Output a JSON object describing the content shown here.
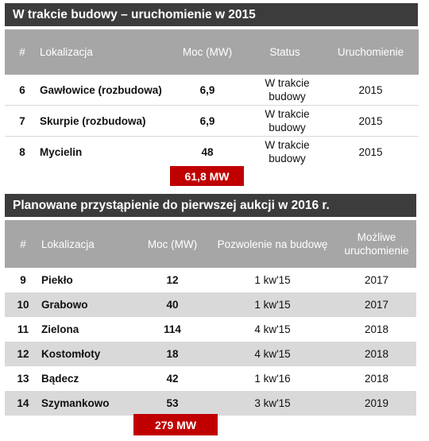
{
  "section1": {
    "title": "W trakcie budowy – uruchomienie w 2015",
    "headers": {
      "num": "#",
      "location": "Lokalizacja",
      "power": "Moc (MW)",
      "status": "Status",
      "launch": "Uruchomienie"
    },
    "rows": [
      {
        "num": "6",
        "location": "Gawłowice (rozbudowa)",
        "power": "6,9",
        "status": "W trakcie budowy",
        "launch": "2015"
      },
      {
        "num": "7",
        "location": "Skurpie (rozbudowa)",
        "power": "6,9",
        "status": "W trakcie budowy",
        "launch": "2015"
      },
      {
        "num": "8",
        "location": "Mycielin",
        "power": "48",
        "status": "W trakcie budowy",
        "launch": "2015"
      }
    ],
    "total": "61,8 MW"
  },
  "section2": {
    "title": "Planowane przystąpienie do pierwszej aukcji w 2016 r.",
    "headers": {
      "num": "#",
      "location": "Lokalizacja",
      "power": "Moc (MW)",
      "permit": "Pozwolenie na budowę",
      "launch": "Możliwe uruchomienie"
    },
    "rows": [
      {
        "num": "9",
        "location": "Piekło",
        "power": "12",
        "permit": "1 kw'15",
        "launch": "2017"
      },
      {
        "num": "10",
        "location": "Grabowo",
        "power": "40",
        "permit": "1 kw'15",
        "launch": "2017"
      },
      {
        "num": "11",
        "location": "Zielona",
        "power": "114",
        "permit": "4 kw'15",
        "launch": "2018"
      },
      {
        "num": "12",
        "location": "Kostomłoty",
        "power": "18",
        "permit": "4 kw'15",
        "launch": "2018"
      },
      {
        "num": "13",
        "location": "Bądecz",
        "power": "42",
        "permit": "1 kw'16",
        "launch": "2018"
      },
      {
        "num": "14",
        "location": "Szymankowo",
        "power": "53",
        "permit": "3 kw'15",
        "launch": "2019"
      }
    ],
    "total": "279 MW"
  }
}
